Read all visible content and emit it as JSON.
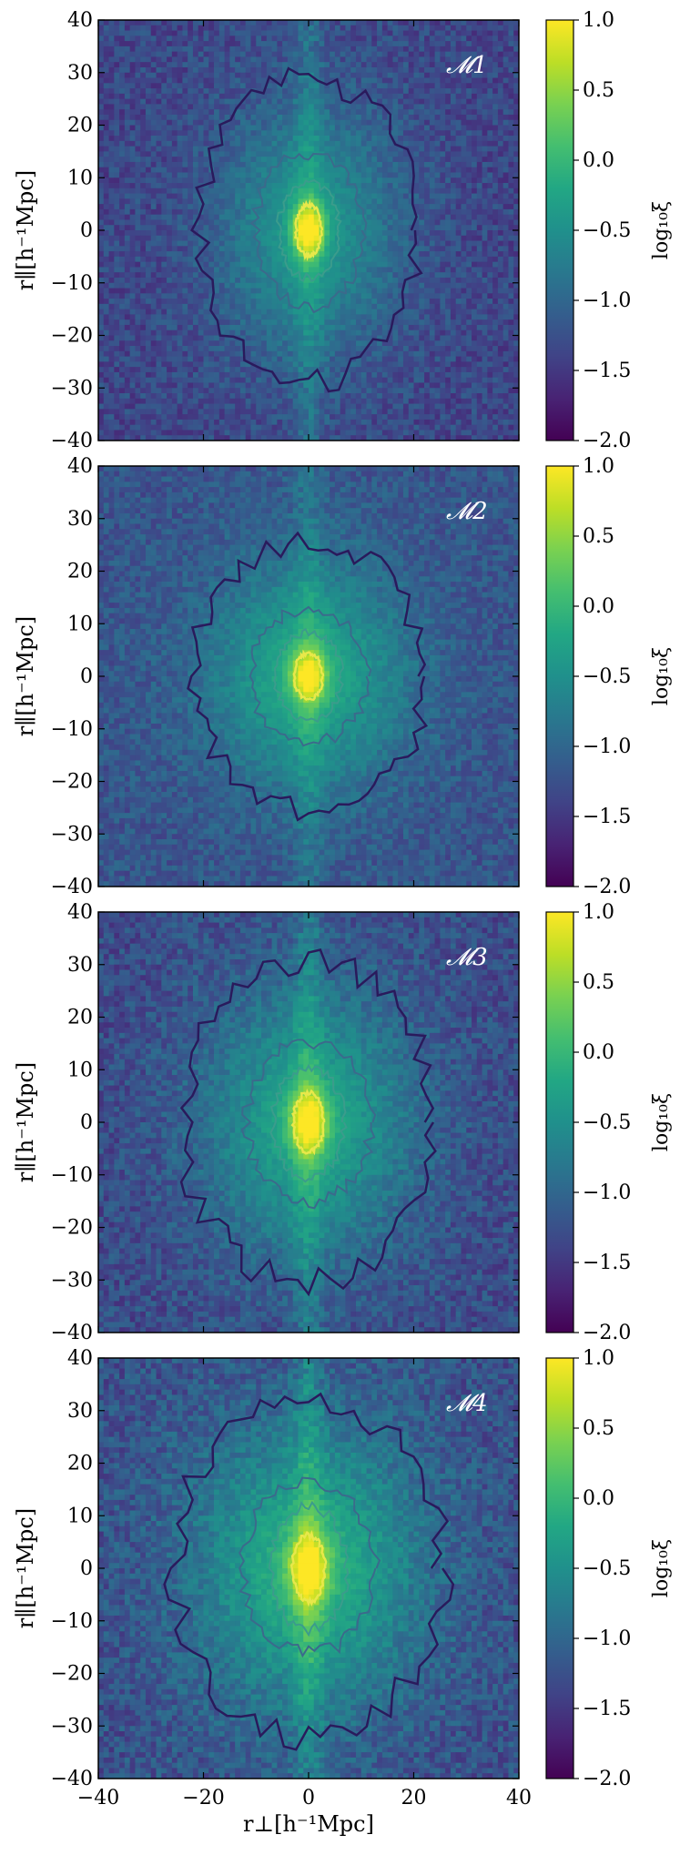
{
  "chart_data": [
    {
      "type": "heatmap",
      "panel_label": "𝓜1",
      "colorscale": "viridis",
      "x": {
        "min": -40,
        "max": 40,
        "bins": 80
      },
      "y": {
        "min": -40,
        "max": 40,
        "bins": 80
      },
      "xlim": [
        -40,
        40
      ],
      "ylim": [
        -40,
        40
      ],
      "xticks": [
        "−40",
        "−20",
        "0",
        "20",
        "40"
      ],
      "yticks": [
        "40",
        "30",
        "20",
        "10",
        "0",
        "−10",
        "−20",
        "−30",
        "−40"
      ],
      "xlabel": "",
      "ylabel": "r∥[h⁻¹Mpc]",
      "colorbar": {
        "label": "log₁₀ξ",
        "range": [
          -2.0,
          1.0
        ],
        "ticks": [
          "1.0",
          "0.5",
          "0.0",
          "−0.5",
          "−1.0",
          "−1.5",
          "−2.0"
        ]
      },
      "model": {
        "peak": 1.0,
        "sx": 2.2,
        "sy": 3.5,
        "amp2": 0.95,
        "sx2": 12,
        "sy2": 17,
        "floor": -1.35,
        "noise": 0.55,
        "spike": 0.35
      }
    },
    {
      "type": "heatmap",
      "panel_label": "𝓜2",
      "colorscale": "viridis",
      "x": {
        "min": -40,
        "max": 40,
        "bins": 80
      },
      "y": {
        "min": -40,
        "max": 40,
        "bins": 80
      },
      "xlim": [
        -40,
        40
      ],
      "ylim": [
        -40,
        40
      ],
      "xticks": [
        "−40",
        "−20",
        "0",
        "20",
        "40"
      ],
      "yticks": [
        "40",
        "30",
        "20",
        "10",
        "0",
        "−10",
        "−20",
        "−30",
        "−40"
      ],
      "xlabel": "",
      "ylabel": "r∥[h⁻¹Mpc]",
      "colorbar": {
        "label": "log₁₀ξ",
        "range": [
          -2.0,
          1.0
        ],
        "ticks": [
          "1.0",
          "0.5",
          "0.0",
          "−0.5",
          "−1.0",
          "−1.5",
          "−2.0"
        ]
      },
      "model": {
        "peak": 1.0,
        "sx": 2.4,
        "sy": 3.2,
        "amp2": 1.05,
        "sx2": 13,
        "sy2": 15,
        "floor": -1.2,
        "noise": 0.5,
        "spike": 0.3
      }
    },
    {
      "type": "heatmap",
      "panel_label": "𝓜3",
      "colorscale": "viridis",
      "x": {
        "min": -40,
        "max": 40,
        "bins": 80
      },
      "y": {
        "min": -40,
        "max": 40,
        "bins": 80
      },
      "xlim": [
        -40,
        40
      ],
      "ylim": [
        -40,
        40
      ],
      "xticks": [
        "−40",
        "−20",
        "0",
        "20",
        "40"
      ],
      "yticks": [
        "40",
        "30",
        "20",
        "10",
        "0",
        "−10",
        "−20",
        "−30",
        "−40"
      ],
      "xlabel": "",
      "ylabel": "r∥[h⁻¹Mpc]",
      "colorbar": {
        "label": "log₁₀ξ",
        "range": [
          -2.0,
          1.0
        ],
        "ticks": [
          "1.0",
          "0.5",
          "0.0",
          "−0.5",
          "−1.0",
          "−1.5",
          "−2.0"
        ]
      },
      "model": {
        "peak": 1.0,
        "sx": 2.6,
        "sy": 4.0,
        "amp2": 1.1,
        "sx2": 14,
        "sy2": 18,
        "floor": -1.3,
        "noise": 0.6,
        "spike": 0.4
      }
    },
    {
      "type": "heatmap",
      "panel_label": "𝓜4",
      "colorscale": "viridis",
      "x": {
        "min": -40,
        "max": 40,
        "bins": 80
      },
      "y": {
        "min": -40,
        "max": 40,
        "bins": 80
      },
      "xlim": [
        -40,
        40
      ],
      "ylim": [
        -40,
        40
      ],
      "xticks": [
        "−40",
        "−20",
        "0",
        "20",
        "40"
      ],
      "yticks": [
        "40",
        "30",
        "20",
        "10",
        "0",
        "−10",
        "−20",
        "−30",
        "−40"
      ],
      "xlabel": "r⊥[h⁻¹Mpc]",
      "ylabel": "r∥[h⁻¹Mpc]",
      "colorbar": {
        "label": "log₁₀ξ",
        "range": [
          -2.0,
          1.0
        ],
        "ticks": [
          "1.0",
          "0.5",
          "0.0",
          "−0.5",
          "−1.0",
          "−1.5",
          "−2.0"
        ]
      },
      "model": {
        "peak": 1.0,
        "sx": 2.8,
        "sy": 4.5,
        "amp2": 1.2,
        "sx2": 15,
        "sy2": 19,
        "floor": -1.25,
        "noise": 0.65,
        "spike": 0.45
      }
    }
  ]
}
